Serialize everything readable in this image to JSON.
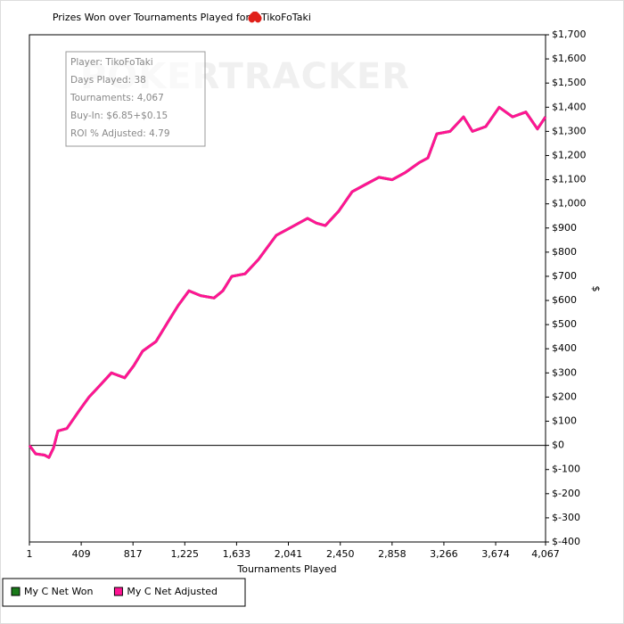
{
  "chart_data": {
    "type": "line",
    "title": "Prizes Won over Tournaments Played for",
    "player": "TikoFoTaki",
    "watermark": "POKERTRACKER",
    "x_label": "Tournaments Played",
    "y_label": "$",
    "info_box": [
      "Player: TikoFoTaki",
      "Days Played: 38",
      "Tournaments: 4,067",
      "Buy-In: $6.85+$0.15",
      "ROI % Adjusted: 4.79"
    ],
    "x": [
      1,
      50,
      120,
      155,
      191,
      226,
      296,
      401,
      471,
      542,
      647,
      752,
      823,
      893,
      998,
      1103,
      1174,
      1258,
      1349,
      1455,
      1525,
      1595,
      1700,
      1806,
      1876,
      1946,
      2052,
      2192,
      2262,
      2332,
      2438,
      2543,
      2648,
      2754,
      2859,
      2964,
      3070,
      3140,
      3210,
      3315,
      3421,
      3491,
      3596,
      3702,
      3807,
      3912,
      4003,
      4067
    ],
    "series": [
      {
        "name": "My C Net Won",
        "color": "#1a7a1a",
        "values": [
          0,
          -35,
          -40,
          -50,
          -10,
          60,
          70,
          150,
          200,
          240,
          300,
          280,
          330,
          390,
          430,
          520,
          580,
          640,
          620,
          610,
          640,
          700,
          710,
          770,
          820,
          870,
          900,
          940,
          920,
          910,
          970,
          1050,
          1080,
          1110,
          1100,
          1130,
          1170,
          1190,
          1290,
          1300,
          1360,
          1300,
          1320,
          1400,
          1360,
          1380,
          1310,
          1360
        ]
      },
      {
        "name": "My C Net Adjusted",
        "color": "#ff1493",
        "values": [
          0,
          -35,
          -40,
          -50,
          -10,
          60,
          70,
          150,
          200,
          240,
          300,
          280,
          330,
          390,
          430,
          520,
          580,
          640,
          620,
          610,
          640,
          700,
          710,
          770,
          820,
          870,
          900,
          940,
          920,
          910,
          970,
          1050,
          1080,
          1110,
          1100,
          1130,
          1170,
          1190,
          1290,
          1300,
          1360,
          1300,
          1320,
          1400,
          1360,
          1380,
          1310,
          1360
        ]
      }
    ],
    "xlim": [
      1,
      4067
    ],
    "xticks": [
      1,
      409,
      817,
      {
        "value": 1225,
        "label": "1,225"
      },
      {
        "value": 1633,
        "label": "1,633"
      },
      {
        "value": 2041,
        "label": "2,041"
      },
      {
        "value": 2450,
        "label": "2,450"
      },
      {
        "value": 2858,
        "label": "2,858"
      },
      {
        "value": 3266,
        "label": "3,266"
      },
      {
        "value": 3674,
        "label": "3,674"
      },
      {
        "value": 4067,
        "label": "4,067"
      }
    ],
    "ylim": [
      -400,
      1700
    ],
    "yticks": [
      {
        "value": -400,
        "label": "$-400"
      },
      {
        "value": -300,
        "label": "$-300"
      },
      {
        "value": -200,
        "label": "$-200"
      },
      {
        "value": -100,
        "label": "$-100"
      },
      {
        "value": 0,
        "label": "$0"
      },
      {
        "value": 100,
        "label": "$100"
      },
      {
        "value": 200,
        "label": "$200"
      },
      {
        "value": 300,
        "label": "$300"
      },
      {
        "value": 400,
        "label": "$400"
      },
      {
        "value": 500,
        "label": "$500"
      },
      {
        "value": 600,
        "label": "$600"
      },
      {
        "value": 700,
        "label": "$700"
      },
      {
        "value": 800,
        "label": "$800"
      },
      {
        "value": 900,
        "label": "$900"
      },
      {
        "value": 1000,
        "label": "$1,000"
      },
      {
        "value": 1100,
        "label": "$1,100"
      },
      {
        "value": 1200,
        "label": "$1,200"
      },
      {
        "value": 1300,
        "label": "$1,300"
      },
      {
        "value": 1400,
        "label": "$1,400"
      },
      {
        "value": 1500,
        "label": "$1,500"
      },
      {
        "value": 1600,
        "label": "$1,600"
      },
      {
        "value": 1700,
        "label": "$1,700"
      }
    ]
  }
}
